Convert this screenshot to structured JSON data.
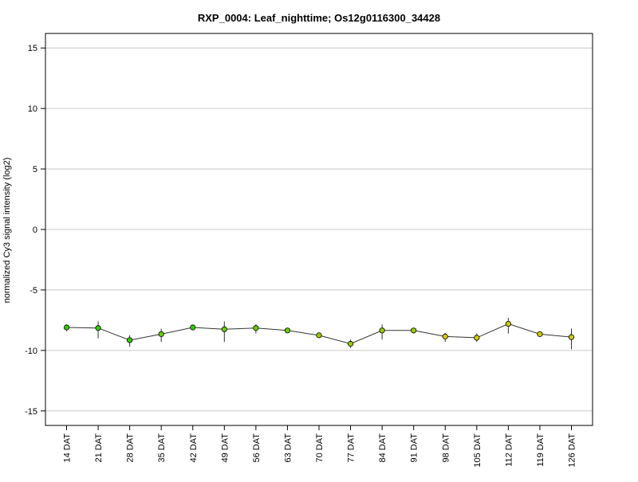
{
  "chart_data": {
    "type": "line",
    "title": "RXP_0004: Leaf_nighttime; Os12g0116300_34428",
    "ylabel": "normalized Cy3 signal intensity (log2)",
    "xlabel": "",
    "ylim": [
      -16.2,
      16.2
    ],
    "yticks": [
      -15,
      -10,
      -5,
      0,
      5,
      10,
      15
    ],
    "grid": "horizontal",
    "categories": [
      "14 DAT",
      "21 DAT",
      "28 DAT",
      "35 DAT",
      "42 DAT",
      "49 DAT",
      "56 DAT",
      "63 DAT",
      "70 DAT",
      "77 DAT",
      "84 DAT",
      "91 DAT",
      "98 DAT",
      "105 DAT",
      "112 DAT",
      "119 DAT",
      "126 DAT"
    ],
    "values": [
      -8.1,
      -8.15,
      -9.15,
      -8.65,
      -8.1,
      -8.25,
      -8.15,
      -8.35,
      -8.75,
      -9.45,
      -8.35,
      -8.35,
      -8.85,
      -8.95,
      -7.8,
      -8.65,
      -8.9
    ],
    "error_low": [
      -8.4,
      -9.0,
      -9.7,
      -9.3,
      -8.2,
      -9.3,
      -8.6,
      -8.5,
      -8.9,
      -9.8,
      -9.1,
      -8.6,
      -9.3,
      -9.3,
      -8.6,
      -8.8,
      -9.9
    ],
    "error_high": [
      -7.85,
      -7.6,
      -8.75,
      -8.2,
      -8.0,
      -7.6,
      -7.85,
      -8.2,
      -8.55,
      -9.1,
      -7.85,
      -8.15,
      -8.55,
      -8.6,
      -7.3,
      -8.45,
      -8.2
    ],
    "point_colors": [
      "#33cc00",
      "#33cc00",
      "#33cc00",
      "#66cc00",
      "#33cc00",
      "#66cc00",
      "#66cc00",
      "#66cc00",
      "#99cc00",
      "#99cc00",
      "#99cc00",
      "#99cc00",
      "#cccc00",
      "#cccc00",
      "#cccc00",
      "#cccc00",
      "#cccc00"
    ]
  }
}
